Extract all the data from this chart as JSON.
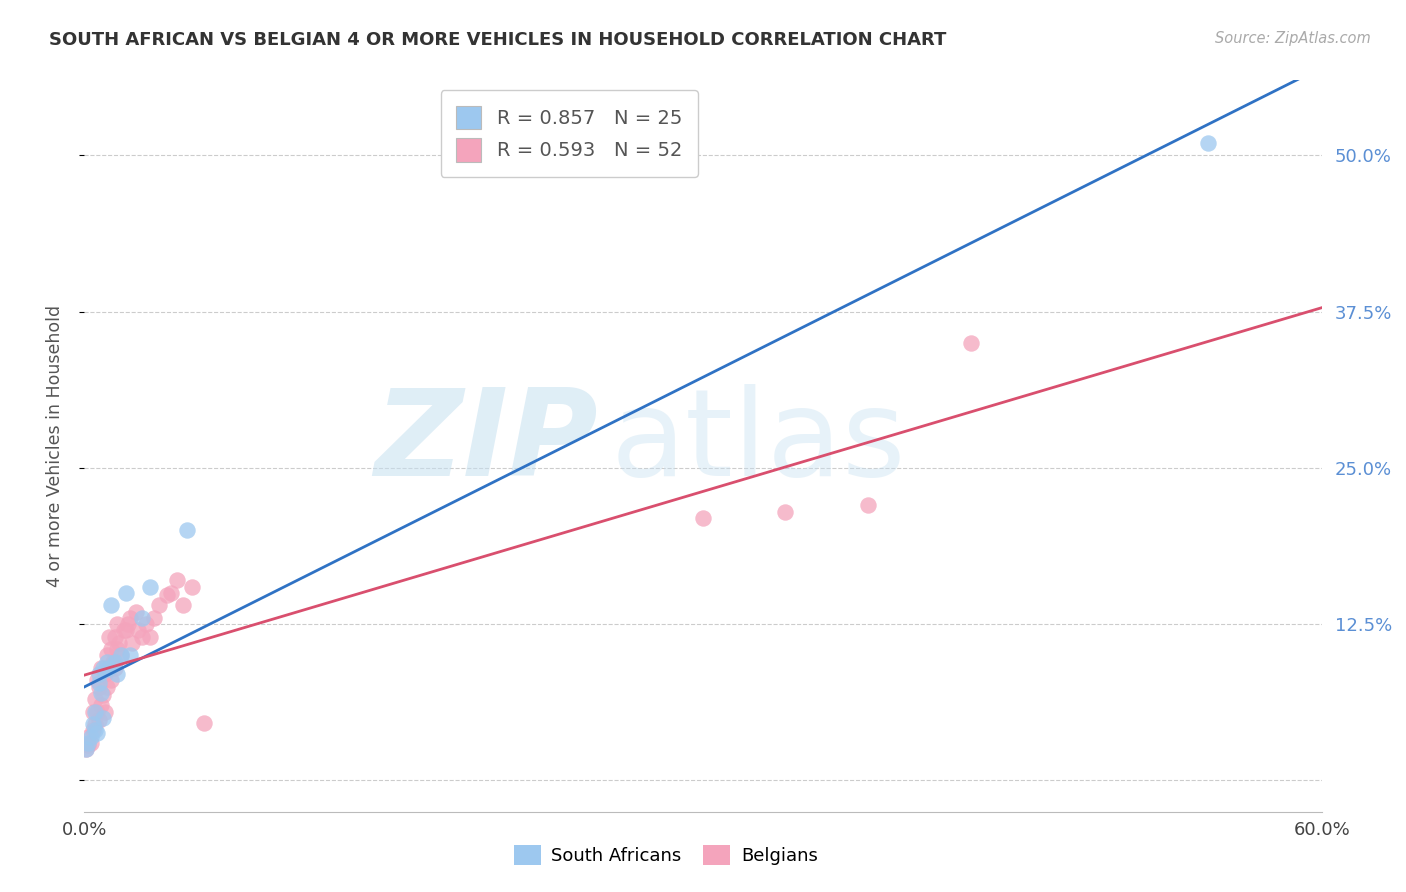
{
  "title": "SOUTH AFRICAN VS BELGIAN 4 OR MORE VEHICLES IN HOUSEHOLD CORRELATION CHART",
  "source": "Source: ZipAtlas.com",
  "ylabel": "4 or more Vehicles in Household",
  "xlim": [
    0.0,
    0.6
  ],
  "ylim": [
    -0.025,
    0.56
  ],
  "yticks": [
    0.0,
    0.125,
    0.25,
    0.375,
    0.5
  ],
  "ytick_labels": [
    "",
    "12.5%",
    "25.0%",
    "37.5%",
    "50.0%"
  ],
  "sa_color": "#9DC8EF",
  "be_color": "#F4A4BC",
  "sa_line_color": "#2F72C4",
  "be_line_color": "#D94F6E",
  "legend_sa_R": "R = 0.857",
  "legend_sa_N": "N = 25",
  "legend_be_R": "R = 0.593",
  "legend_be_N": "N = 52",
  "watermark_zip": "ZIP",
  "watermark_atlas": "atlas",
  "sa_x": [
    0.001,
    0.002,
    0.003,
    0.004,
    0.005,
    0.005,
    0.006,
    0.007,
    0.007,
    0.008,
    0.009,
    0.009,
    0.01,
    0.011,
    0.012,
    0.013,
    0.015,
    0.016,
    0.018,
    0.02,
    0.022,
    0.028,
    0.032,
    0.05,
    0.545
  ],
  "sa_y": [
    0.025,
    0.03,
    0.035,
    0.045,
    0.04,
    0.055,
    0.038,
    0.085,
    0.078,
    0.07,
    0.05,
    0.09,
    0.088,
    0.095,
    0.09,
    0.14,
    0.095,
    0.085,
    0.1,
    0.15,
    0.1,
    0.13,
    0.155,
    0.2,
    0.51
  ],
  "be_x": [
    0.001,
    0.002,
    0.002,
    0.003,
    0.004,
    0.004,
    0.005,
    0.005,
    0.006,
    0.006,
    0.007,
    0.007,
    0.008,
    0.008,
    0.009,
    0.01,
    0.01,
    0.011,
    0.011,
    0.012,
    0.012,
    0.013,
    0.013,
    0.014,
    0.015,
    0.015,
    0.016,
    0.016,
    0.017,
    0.018,
    0.019,
    0.02,
    0.021,
    0.022,
    0.023,
    0.025,
    0.026,
    0.028,
    0.03,
    0.032,
    0.034,
    0.036,
    0.04,
    0.042,
    0.045,
    0.048,
    0.052,
    0.058,
    0.3,
    0.34,
    0.38,
    0.43
  ],
  "be_y": [
    0.025,
    0.028,
    0.035,
    0.03,
    0.04,
    0.055,
    0.045,
    0.065,
    0.08,
    0.055,
    0.075,
    0.048,
    0.06,
    0.09,
    0.068,
    0.055,
    0.085,
    0.1,
    0.075,
    0.115,
    0.09,
    0.105,
    0.08,
    0.095,
    0.115,
    0.09,
    0.105,
    0.125,
    0.11,
    0.1,
    0.12,
    0.12,
    0.125,
    0.13,
    0.11,
    0.135,
    0.12,
    0.115,
    0.125,
    0.115,
    0.13,
    0.14,
    0.148,
    0.15,
    0.16,
    0.14,
    0.155,
    0.046,
    0.21,
    0.215,
    0.22,
    0.35
  ]
}
